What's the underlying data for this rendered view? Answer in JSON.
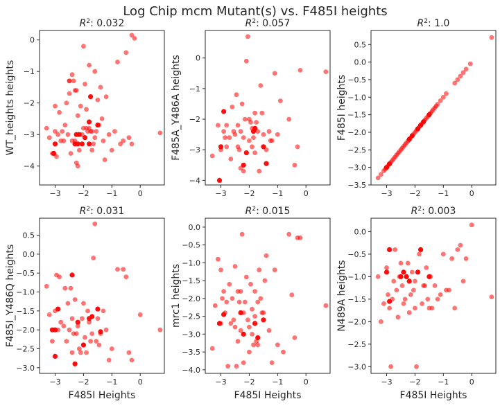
{
  "figure": {
    "title": "Log Chip mcm Mutant(s) vs. F485I heights"
  },
  "style": {
    "point_color": "#ff0000",
    "point_opacity": 0.55,
    "text_color": "#262626"
  },
  "chart_data": [
    {
      "type": "scatter",
      "title_prefix": "R",
      "title_value": "0.032",
      "xlabel": "",
      "ylabel": "WT_heights heights",
      "xlim": [
        -3.55,
        0.85
      ],
      "ylim": [
        -4.6,
        0.3
      ],
      "xticks": [
        -3,
        -2,
        -1,
        0
      ],
      "yticks": [
        -4,
        -3,
        -2,
        -1,
        0
      ],
      "x": [
        -3.3,
        -3.2,
        -3.1,
        -3.0,
        -3.0,
        -2.95,
        -2.9,
        -2.85,
        -2.8,
        -2.75,
        -2.7,
        -2.65,
        -2.6,
        -2.55,
        -2.5,
        -2.5,
        -2.45,
        -2.4,
        -2.4,
        -2.35,
        -2.3,
        -2.3,
        -2.25,
        -2.25,
        -2.2,
        -2.2,
        -2.15,
        -2.1,
        -2.05,
        -2.0,
        -2.0,
        -1.95,
        -1.9,
        -1.9,
        -1.85,
        -1.8,
        -1.8,
        -1.75,
        -1.7,
        -1.7,
        -1.65,
        -1.6,
        -1.6,
        -1.55,
        -1.5,
        -1.45,
        -1.4,
        -1.35,
        -1.3,
        -1.25,
        -1.2,
        -1.1,
        -1.0,
        -0.9,
        -0.8,
        -0.7,
        -0.6,
        -0.5,
        -0.4,
        -0.3,
        -0.3,
        -0.2,
        0.7,
        -2.3,
        -2.25,
        -2.2,
        -2.15,
        -1.8,
        -1.75,
        -1.5,
        -2.5,
        -3.05,
        -3.0,
        -2.05,
        -1.95,
        -1.8
      ],
      "y": [
        -2.8,
        -3.1,
        -3.6,
        -2.9,
        -2.1,
        -3.7,
        -3.0,
        -2.3,
        -3.2,
        -2.9,
        -3.2,
        -2.7,
        -2.0,
        -3.0,
        -1.3,
        -1.7,
        -3.6,
        -1.1,
        -3.2,
        -1.3,
        -1.6,
        -3.2,
        -1.6,
        -3.9,
        -2.4,
        -4.0,
        -3.5,
        -2.1,
        -3.0,
        -0.2,
        -2.8,
        -1.4,
        -2.8,
        -2.2,
        -2.9,
        -0.8,
        -2.8,
        -2.9,
        -2.9,
        -3.5,
        -3.3,
        -1.0,
        -3.1,
        -2.9,
        -1.9,
        -2.7,
        -1.5,
        -2.5,
        -3.2,
        -3.8,
        -1.8,
        -3.0,
        -3.5,
        -2.9,
        -0.7,
        -3.3,
        -3.2,
        -0.4,
        -3.1,
        -3.3,
        0.15,
        0.05,
        -2.95,
        -3.3,
        -3.0,
        -3.3,
        -3.0,
        -3.3,
        -1.8,
        -2.7,
        -1.3,
        -3.6,
        -3.3,
        -3.3,
        -3.1,
        -2.6
      ],
      "highlight": [
        false,
        false,
        false,
        false,
        false,
        false,
        false,
        false,
        false,
        false,
        false,
        false,
        false,
        false,
        false,
        false,
        false,
        false,
        false,
        false,
        false,
        false,
        false,
        false,
        false,
        false,
        false,
        false,
        false,
        false,
        false,
        false,
        false,
        false,
        false,
        false,
        false,
        false,
        false,
        false,
        false,
        false,
        false,
        false,
        false,
        false,
        false,
        false,
        false,
        false,
        false,
        false,
        false,
        false,
        false,
        false,
        false,
        false,
        false,
        false,
        false,
        false,
        false,
        true,
        true,
        true,
        true,
        true,
        true,
        true,
        false,
        true,
        true,
        true,
        true,
        true
      ]
    },
    {
      "type": "scatter",
      "title_prefix": "R",
      "title_value": "0.057",
      "xlabel": "",
      "ylabel": "F485A_Y486A heights",
      "xlim": [
        -3.55,
        0.85
      ],
      "ylim": [
        -4.15,
        0.9
      ],
      "xticks": [
        -3,
        -2,
        -1,
        0
      ],
      "yticks": [
        -4,
        -3,
        -2,
        -1,
        0
      ],
      "x": [
        -3.3,
        -3.1,
        -3.0,
        -2.9,
        -2.85,
        -2.8,
        -2.8,
        -2.7,
        -2.65,
        -2.6,
        -2.55,
        -2.5,
        -2.45,
        -2.4,
        -2.4,
        -2.35,
        -2.3,
        -2.3,
        -2.25,
        -2.2,
        -2.2,
        -2.15,
        -2.1,
        -2.05,
        -2.0,
        -2.0,
        -1.95,
        -1.9,
        -1.9,
        -1.85,
        -1.8,
        -1.8,
        -1.75,
        -1.7,
        -1.65,
        -1.6,
        -1.55,
        -1.5,
        -1.4,
        -1.3,
        -1.25,
        -1.2,
        -1.1,
        -1.0,
        -0.9,
        -0.6,
        -0.4,
        -0.3,
        -0.2,
        0.7,
        -2.1,
        -3.0,
        -2.2,
        -1.8,
        -1.5,
        -1.85,
        -3.05,
        -2.9,
        -1.4
      ],
      "y": [
        -3.2,
        -2.2,
        -3.0,
        -2.4,
        -2.6,
        -2.2,
        -2.9,
        -2.6,
        -3.3,
        -1.6,
        -2.4,
        -2.5,
        -1.2,
        -2.2,
        -2.9,
        -3.0,
        -2.4,
        -3.6,
        -1.5,
        -3.7,
        -2.6,
        -2.0,
        -0.1,
        0.7,
        -2.0,
        -2.7,
        -2.1,
        -2.3,
        -2.9,
        -2.6,
        -1.8,
        -3.1,
        -2.1,
        -2.4,
        -3.7,
        -0.9,
        -1.8,
        -2.5,
        -3.0,
        -2.4,
        -2.7,
        -2.7,
        -0.5,
        -2.5,
        -1.4,
        -2.0,
        -3.5,
        -2.9,
        -0.4,
        -0.45,
        -3.1,
        -2.9,
        -3.5,
        -2.3,
        -2.9,
        -2.4,
        -4.0,
        -1.75,
        -3.45
      ],
      "highlight": [
        false,
        false,
        false,
        false,
        false,
        false,
        false,
        false,
        false,
        false,
        false,
        false,
        false,
        false,
        false,
        false,
        false,
        false,
        false,
        false,
        false,
        false,
        false,
        false,
        false,
        false,
        false,
        false,
        false,
        false,
        false,
        false,
        false,
        false,
        false,
        false,
        false,
        false,
        false,
        false,
        false,
        false,
        false,
        false,
        false,
        false,
        false,
        false,
        false,
        false,
        true,
        true,
        true,
        true,
        true,
        true,
        true,
        true,
        true
      ]
    },
    {
      "type": "scatter",
      "title_prefix": "R",
      "title_value": "1.0",
      "xlabel": "",
      "ylabel": "F485I heights",
      "xlim": [
        -3.55,
        0.85
      ],
      "ylim": [
        -3.5,
        0.9
      ],
      "xticks": [
        -3,
        -2,
        -1,
        0
      ],
      "yticks": [
        -3.5,
        -3.0,
        -2.5,
        -2.0,
        -1.5,
        -1.0,
        -0.5,
        0.0,
        0.5
      ],
      "x": [
        -3.3,
        -3.2,
        -3.1,
        -3.05,
        -3.0,
        -2.95,
        -2.9,
        -2.85,
        -2.8,
        -2.75,
        -2.7,
        -2.65,
        -2.6,
        -2.55,
        -2.5,
        -2.45,
        -2.4,
        -2.35,
        -2.3,
        -2.25,
        -2.2,
        -2.15,
        -2.1,
        -2.05,
        -2.0,
        -1.95,
        -1.9,
        -1.85,
        -1.8,
        -1.75,
        -1.7,
        -1.65,
        -1.6,
        -1.55,
        -1.5,
        -1.45,
        -1.4,
        -1.35,
        -1.3,
        -1.25,
        -1.2,
        -1.1,
        -1.0,
        -0.9,
        -0.6,
        -0.5,
        -0.4,
        -0.3,
        -0.2,
        -0.05,
        0.7,
        -3.0,
        -2.9,
        -2.2,
        -2.1,
        -1.9,
        -1.8,
        -1.7,
        -1.5
      ],
      "y": [
        -3.3,
        -3.2,
        -3.1,
        -3.05,
        -3.0,
        -2.95,
        -2.9,
        -2.85,
        -2.8,
        -2.75,
        -2.7,
        -2.65,
        -2.6,
        -2.55,
        -2.5,
        -2.45,
        -2.4,
        -2.35,
        -2.3,
        -2.25,
        -2.2,
        -2.15,
        -2.1,
        -2.05,
        -2.0,
        -1.95,
        -1.9,
        -1.85,
        -1.8,
        -1.75,
        -1.7,
        -1.65,
        -1.6,
        -1.55,
        -1.5,
        -1.45,
        -1.4,
        -1.35,
        -1.3,
        -1.25,
        -1.2,
        -1.1,
        -1.0,
        -0.9,
        -0.6,
        -0.5,
        -0.4,
        -0.3,
        -0.2,
        -0.05,
        0.7,
        -3.0,
        -2.9,
        -2.2,
        -2.1,
        -1.9,
        -1.8,
        -1.7,
        -1.5
      ],
      "highlight": [
        false,
        false,
        false,
        false,
        false,
        false,
        false,
        false,
        false,
        false,
        false,
        false,
        false,
        false,
        false,
        false,
        false,
        false,
        false,
        false,
        false,
        false,
        false,
        false,
        false,
        false,
        false,
        false,
        false,
        false,
        false,
        false,
        false,
        false,
        false,
        false,
        false,
        false,
        false,
        false,
        false,
        false,
        false,
        false,
        false,
        false,
        false,
        false,
        false,
        false,
        false,
        true,
        true,
        true,
        true,
        true,
        true,
        true,
        true
      ]
    },
    {
      "type": "scatter",
      "title_prefix": "R",
      "title_value": "0.031",
      "xlabel": "F485I Heights",
      "ylabel": "F485I_Y486Q heights",
      "xlim": [
        -3.55,
        0.85
      ],
      "ylim": [
        -3.15,
        0.95
      ],
      "xticks": [
        -3,
        -2,
        -1,
        0
      ],
      "yticks": [
        -3.0,
        -2.5,
        -2.0,
        -1.5,
        -1.0,
        -0.5,
        0.0,
        0.5
      ],
      "x": [
        -3.3,
        -3.2,
        -3.1,
        -3.0,
        -2.95,
        -2.9,
        -2.85,
        -2.8,
        -2.7,
        -2.65,
        -2.6,
        -2.55,
        -2.5,
        -2.45,
        -2.4,
        -2.4,
        -2.35,
        -2.3,
        -2.25,
        -2.2,
        -2.15,
        -2.1,
        -2.05,
        -2.0,
        -2.0,
        -1.95,
        -1.9,
        -1.85,
        -1.8,
        -1.75,
        -1.7,
        -1.65,
        -1.6,
        -1.55,
        -1.5,
        -1.45,
        -1.4,
        -1.3,
        -1.2,
        -1.1,
        -1.0,
        -0.8,
        -0.6,
        -0.5,
        -0.4,
        -0.3,
        0.0,
        0.7,
        -3.0,
        -3.0,
        -2.9,
        -2.4,
        -2.3,
        -2.2,
        -2.0,
        -1.8,
        -1.7,
        -1.5,
        -1.4,
        -3.1
      ],
      "y": [
        -0.85,
        -1.6,
        -2.3,
        -1.5,
        -0.55,
        -2.0,
        -0.6,
        -1.8,
        -1.9,
        -0.9,
        -2.3,
        -1.3,
        -2.0,
        -0.9,
        -1.7,
        -2.6,
        -2.1,
        -1.2,
        -2.1,
        -1.9,
        -2.5,
        -2.6,
        -1.7,
        -2.4,
        -1.3,
        -2.2,
        -2.6,
        -1.5,
        -1.8,
        -2.3,
        -2.1,
        -0.1,
        0.8,
        -2.3,
        -1.7,
        -2.4,
        -2.1,
        -1.5,
        -2.0,
        -2.8,
        -2.5,
        -0.4,
        -0.4,
        -0.6,
        -2.6,
        -2.8,
        -1.6,
        -2.0,
        -2.0,
        -2.7,
        -1.45,
        -0.55,
        -2.9,
        -1.8,
        -2.4,
        -1.7,
        -1.65,
        -1.45,
        -2.05,
        -2.0
      ],
      "highlight": [
        false,
        false,
        false,
        false,
        false,
        false,
        false,
        false,
        false,
        false,
        false,
        false,
        false,
        false,
        false,
        false,
        false,
        false,
        false,
        false,
        false,
        false,
        false,
        false,
        false,
        false,
        false,
        false,
        false,
        false,
        false,
        false,
        false,
        false,
        false,
        false,
        false,
        false,
        false,
        false,
        false,
        false,
        false,
        false,
        false,
        false,
        false,
        false,
        true,
        true,
        true,
        true,
        true,
        true,
        true,
        true,
        true,
        true,
        true,
        true
      ]
    },
    {
      "type": "scatter",
      "title_prefix": "R",
      "title_value": "0.015",
      "xlabel": "F485I Heights",
      "ylabel": "mrc1 heights",
      "xlim": [
        -3.55,
        0.85
      ],
      "ylim": [
        -4.1,
        0.25
      ],
      "xticks": [
        -3,
        -2,
        -1,
        0
      ],
      "yticks": [
        -4.0,
        -3.5,
        -3.0,
        -2.5,
        -2.0,
        -1.5,
        -1.0,
        -0.5,
        0.0
      ],
      "x": [
        -3.3,
        -3.2,
        -3.1,
        -3.0,
        -3.0,
        -2.95,
        -2.9,
        -2.85,
        -2.8,
        -2.75,
        -2.7,
        -2.65,
        -2.6,
        -2.55,
        -2.5,
        -2.5,
        -2.45,
        -2.4,
        -2.4,
        -2.35,
        -2.3,
        -2.3,
        -2.25,
        -2.2,
        -2.2,
        -2.15,
        -2.1,
        -2.05,
        -2.0,
        -2.0,
        -1.95,
        -1.9,
        -1.9,
        -1.85,
        -1.8,
        -1.8,
        -1.75,
        -1.7,
        -1.7,
        -1.65,
        -1.6,
        -1.55,
        -1.5,
        -1.45,
        -1.4,
        -1.3,
        -1.2,
        -1.1,
        -1.0,
        -0.8,
        -0.6,
        -0.5,
        -0.4,
        -0.3,
        -0.2,
        0.7,
        -3.05,
        -2.3,
        -2.2,
        -1.8,
        -1.7,
        -1.5,
        -2.9
      ],
      "y": [
        -3.4,
        -2.2,
        -0.9,
        -2.7,
        -1.2,
        -2.0,
        -1.8,
        -2.4,
        -2.1,
        -3.9,
        -1.6,
        -2.7,
        -2.0,
        -2.6,
        -1.1,
        -2.8,
        -3.9,
        -1.8,
        -3.2,
        -2.1,
        -1.8,
        -2.9,
        -0.2,
        -3.8,
        -2.4,
        -2.1,
        -1.4,
        -2.6,
        -2.8,
        -3.5,
        -1.6,
        -2.3,
        -3.0,
        -3.3,
        -2.5,
        -1.8,
        -3.2,
        -2.1,
        -3.3,
        -1.2,
        -2.0,
        -2.4,
        -2.4,
        -1.5,
        -0.8,
        -2.9,
        -3.8,
        -1.2,
        -3.3,
        -3.5,
        -0.2,
        -1.9,
        -3.1,
        -0.3,
        -0.3,
        -2.2,
        -2.7,
        -2.4,
        -3.0,
        -2.7,
        -3.1,
        -2.6,
        -2.45
      ],
      "highlight": [
        false,
        false,
        false,
        false,
        false,
        false,
        false,
        false,
        false,
        false,
        false,
        false,
        false,
        false,
        false,
        false,
        false,
        false,
        false,
        false,
        false,
        false,
        false,
        false,
        false,
        false,
        false,
        false,
        false,
        false,
        false,
        false,
        false,
        false,
        false,
        false,
        false,
        false,
        false,
        false,
        false,
        false,
        false,
        false,
        false,
        false,
        false,
        false,
        false,
        false,
        false,
        false,
        false,
        false,
        false,
        false,
        true,
        true,
        true,
        true,
        true,
        true,
        true
      ]
    },
    {
      "type": "scatter",
      "title_prefix": "R",
      "title_value": "0.003",
      "xlabel": "F485I Heights",
      "ylabel": "N489A heights",
      "xlim": [
        -3.55,
        0.85
      ],
      "ylim": [
        -3.15,
        0.3
      ],
      "xticks": [
        -3,
        -2,
        -1,
        0
      ],
      "yticks": [
        -3.0,
        -2.5,
        -2.0,
        -1.5,
        -1.0,
        -0.5,
        0.0
      ],
      "x": [
        -3.3,
        -3.2,
        -3.1,
        -3.0,
        -2.95,
        -2.9,
        -2.85,
        -2.8,
        -2.75,
        -2.7,
        -2.65,
        -2.6,
        -2.55,
        -2.5,
        -2.45,
        -2.4,
        -2.4,
        -2.35,
        -2.3,
        -2.25,
        -2.2,
        -2.15,
        -2.1,
        -2.05,
        -2.0,
        -2.0,
        -1.95,
        -1.9,
        -1.85,
        -1.8,
        -1.75,
        -1.7,
        -1.65,
        -1.6,
        -1.55,
        -1.5,
        -1.45,
        -1.4,
        -1.3,
        -1.2,
        -1.1,
        -1.0,
        -0.9,
        -0.8,
        -0.7,
        -0.6,
        -0.5,
        -0.4,
        -0.3,
        -0.2,
        0.0,
        0.7,
        -3.0,
        -2.9,
        -2.5,
        -2.4,
        -2.3,
        -1.8,
        -1.9,
        -2.2,
        -1.5,
        -2.9
      ],
      "y": [
        -1.0,
        -2.0,
        -1.6,
        -0.8,
        -1.4,
        -1.7,
        -3.0,
        -1.5,
        -1.1,
        -0.4,
        -1.3,
        -1.9,
        -1.0,
        -0.7,
        -1.2,
        -0.9,
        -1.6,
        -1.5,
        -1.0,
        -0.7,
        -1.8,
        -1.4,
        -0.9,
        -1.3,
        -1.1,
        -1.7,
        -3.0,
        -0.9,
        -0.5,
        -0.4,
        -1.6,
        -1.2,
        -1.2,
        -0.8,
        -1.5,
        -1.7,
        -1.0,
        -1.7,
        -1.2,
        -1.5,
        -1.4,
        -0.5,
        -1.3,
        -1.3,
        -0.6,
        -1.7,
        -0.4,
        -0.3,
        -1.1,
        -0.6,
        0.15,
        -1.45,
        -0.9,
        -0.4,
        -1.0,
        -0.9,
        -1.0,
        -0.4,
        -0.9,
        -1.1,
        -1.0,
        -1.55
      ],
      "highlight": [
        false,
        false,
        false,
        false,
        false,
        false,
        false,
        false,
        false,
        false,
        false,
        false,
        false,
        false,
        false,
        false,
        false,
        false,
        false,
        false,
        false,
        false,
        false,
        false,
        false,
        false,
        false,
        false,
        false,
        false,
        false,
        false,
        false,
        false,
        false,
        false,
        false,
        false,
        false,
        false,
        false,
        false,
        false,
        false,
        false,
        false,
        false,
        false,
        false,
        false,
        false,
        false,
        true,
        true,
        true,
        true,
        true,
        true,
        true,
        true,
        true,
        true
      ]
    }
  ]
}
